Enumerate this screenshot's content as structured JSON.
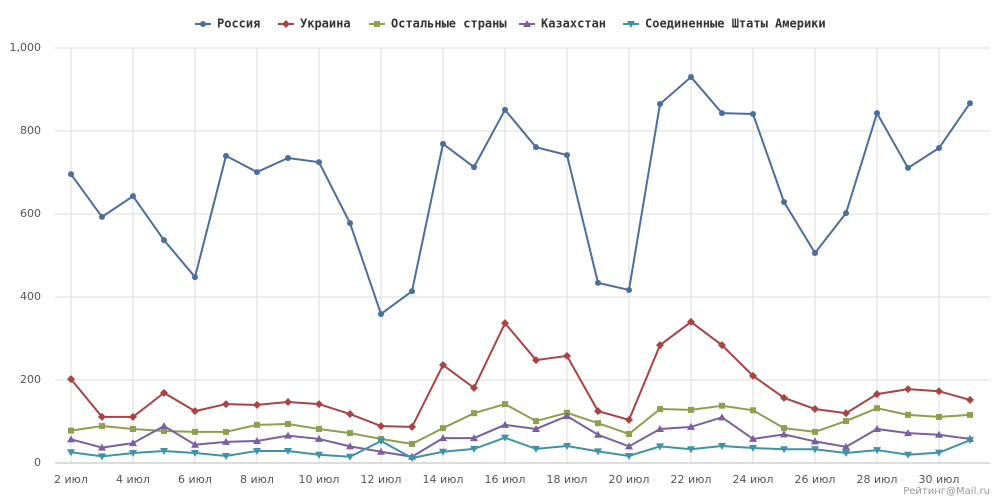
{
  "chart_data": {
    "type": "line",
    "categories": [
      "2 июл",
      null,
      "4 июл",
      null,
      "6 июл",
      null,
      "8 июл",
      null,
      "10 июл",
      null,
      "12 июл",
      null,
      "14 июл",
      null,
      "16 июл",
      null,
      "18 июл",
      null,
      "20 июл",
      null,
      "22 июл",
      null,
      "24 июл",
      null,
      "26 июл",
      null,
      "28 июл",
      null,
      "30 июл",
      null
    ],
    "series": [
      {
        "name": "Россия",
        "color": "#4a6f9c",
        "marker": "circle",
        "values": [
          696,
          593,
          643,
          537,
          448,
          740,
          701,
          735,
          725,
          578,
          359,
          414,
          769,
          713,
          851,
          761,
          742,
          434,
          417,
          865,
          930,
          843,
          841,
          629,
          506,
          602,
          843,
          711,
          759,
          867
        ]
      },
      {
        "name": "Украина",
        "color": "#a94442",
        "marker": "diamond",
        "values": [
          202,
          111,
          111,
          169,
          125,
          142,
          140,
          147,
          142,
          118,
          89,
          87,
          236,
          181,
          337,
          248,
          258,
          125,
          104,
          284,
          340,
          284,
          210,
          157,
          130,
          120,
          166,
          178,
          173,
          152
        ]
      },
      {
        "name": "Остальные страны",
        "color": "#8ca04e",
        "marker": "square",
        "values": [
          78,
          89,
          82,
          77,
          75,
          75,
          92,
          94,
          82,
          72,
          58,
          46,
          84,
          120,
          142,
          101,
          121,
          96,
          70,
          130,
          128,
          138,
          127,
          84,
          75,
          101,
          132,
          116,
          111,
          116
        ]
      },
      {
        "name": "Казахстан",
        "color": "#7b5fa0",
        "marker": "triangle-up",
        "values": [
          57,
          37,
          48,
          89,
          44,
          51,
          53,
          66,
          58,
          40,
          27,
          15,
          60,
          60,
          92,
          82,
          113,
          68,
          40,
          82,
          87,
          110,
          58,
          69,
          52,
          39,
          82,
          72,
          68,
          58
        ]
      },
      {
        "name": "Соединенные Штаты Америки",
        "color": "#3f93a8",
        "marker": "triangle-down",
        "values": [
          26,
          16,
          24,
          29,
          24,
          17,
          29,
          29,
          20,
          15,
          53,
          12,
          27,
          34,
          61,
          34,
          41,
          28,
          17,
          40,
          33,
          41,
          36,
          33,
          33,
          24,
          31,
          20,
          25,
          55
        ]
      }
    ],
    "ylim": [
      0,
      1000
    ],
    "yticks": [
      0,
      200,
      400,
      600,
      800,
      {
        "value": 1000,
        "label": "1,000"
      }
    ],
    "grid": true,
    "legend": "top",
    "credit": "Рейтинг@Mail.ru"
  }
}
